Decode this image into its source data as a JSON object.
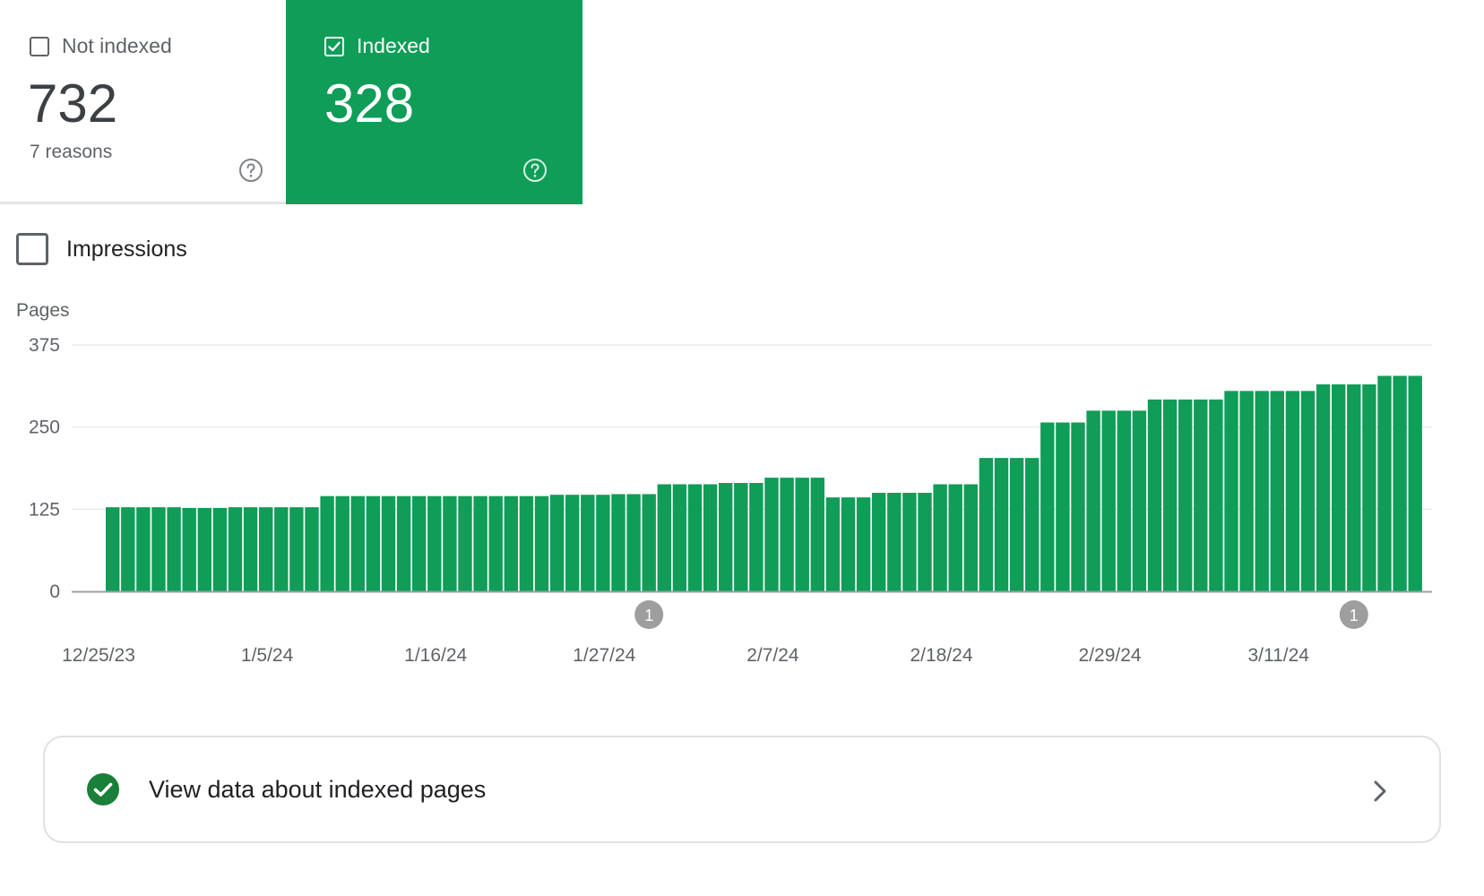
{
  "cards": {
    "not_indexed": {
      "label": "Not indexed",
      "value": "732",
      "sub": "7 reasons",
      "checked": false,
      "help_icon": "help-circle-icon"
    },
    "indexed": {
      "label": "Indexed",
      "value": "328",
      "checked": true,
      "help_icon": "help-circle-icon",
      "color": "#0f9d58"
    }
  },
  "impressions": {
    "label": "Impressions",
    "checked": false
  },
  "chart_data": {
    "type": "bar",
    "ylabel": "Pages",
    "ylim": [
      0,
      375
    ],
    "yticks": [
      "375",
      "250",
      "125",
      "0"
    ],
    "ytick_values": [
      375,
      250,
      125,
      0
    ],
    "grid": true,
    "bar_color": "#0f9d58",
    "x_start": "12/25/23",
    "xticks": [
      "12/25/23",
      "1/5/24",
      "1/16/24",
      "1/27/24",
      "2/7/24",
      "2/18/24",
      "2/29/24",
      "3/11/24"
    ],
    "xtick_indices": [
      0,
      11,
      22,
      33,
      44,
      55,
      66,
      77
    ],
    "annotations": [
      {
        "label": "1",
        "index": 35
      },
      {
        "label": "1",
        "index": 81
      }
    ],
    "values": [
      128,
      128,
      128,
      128,
      128,
      127,
      127,
      127,
      128,
      128,
      128,
      128,
      128,
      128,
      145,
      145,
      145,
      145,
      145,
      145,
      145,
      145,
      145,
      145,
      145,
      145,
      145,
      145,
      145,
      147,
      147,
      147,
      147,
      148,
      148,
      148,
      163,
      163,
      163,
      163,
      165,
      165,
      165,
      173,
      173,
      173,
      173,
      143,
      143,
      143,
      150,
      150,
      150,
      150,
      163,
      163,
      163,
      203,
      203,
      203,
      203,
      257,
      257,
      257,
      275,
      275,
      275,
      275,
      292,
      292,
      292,
      292,
      292,
      305,
      305,
      305,
      305,
      305,
      305,
      315,
      315,
      315,
      315,
      328,
      328,
      328
    ]
  },
  "link_row": {
    "label": "View data about indexed pages",
    "icon": "check-circle-icon",
    "chevron": "chevron-right-icon"
  }
}
